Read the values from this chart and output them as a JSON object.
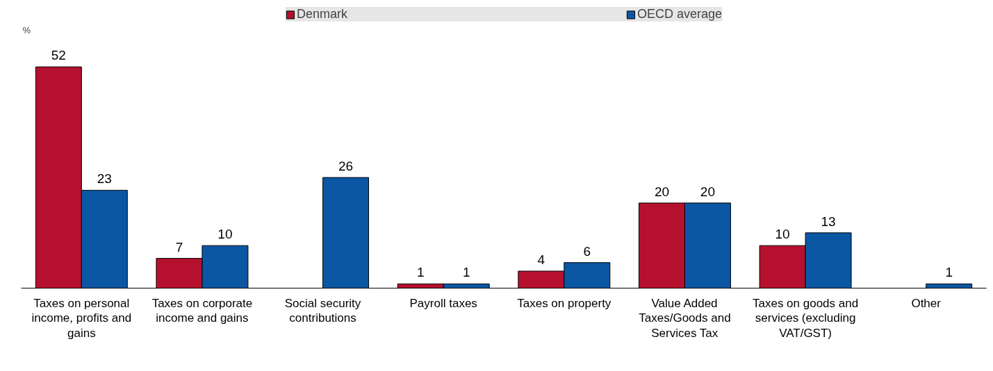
{
  "chart_data": {
    "type": "bar",
    "ylabel": "%",
    "categories": [
      "Taxes on personal income, profits and gains",
      "Taxes on corporate income and gains",
      "Social security contributions",
      "Payroll taxes",
      "Taxes on property",
      "Value Added Taxes/Goods and Services Tax",
      "Taxes on goods and services (excluding VAT/GST)",
      "Other"
    ],
    "series": [
      {
        "name": "Denmark",
        "color": "#b5112f",
        "values": [
          52,
          7,
          null,
          1,
          4,
          20,
          10,
          null
        ]
      },
      {
        "name": "OECD average",
        "color": "#0b57a4",
        "values": [
          23,
          10,
          26,
          1,
          6,
          20,
          13,
          1
        ]
      }
    ],
    "ylim": [
      0,
      66
    ],
    "tick_labels": "x",
    "data_labels": true,
    "legend": "top",
    "grid": false
  }
}
